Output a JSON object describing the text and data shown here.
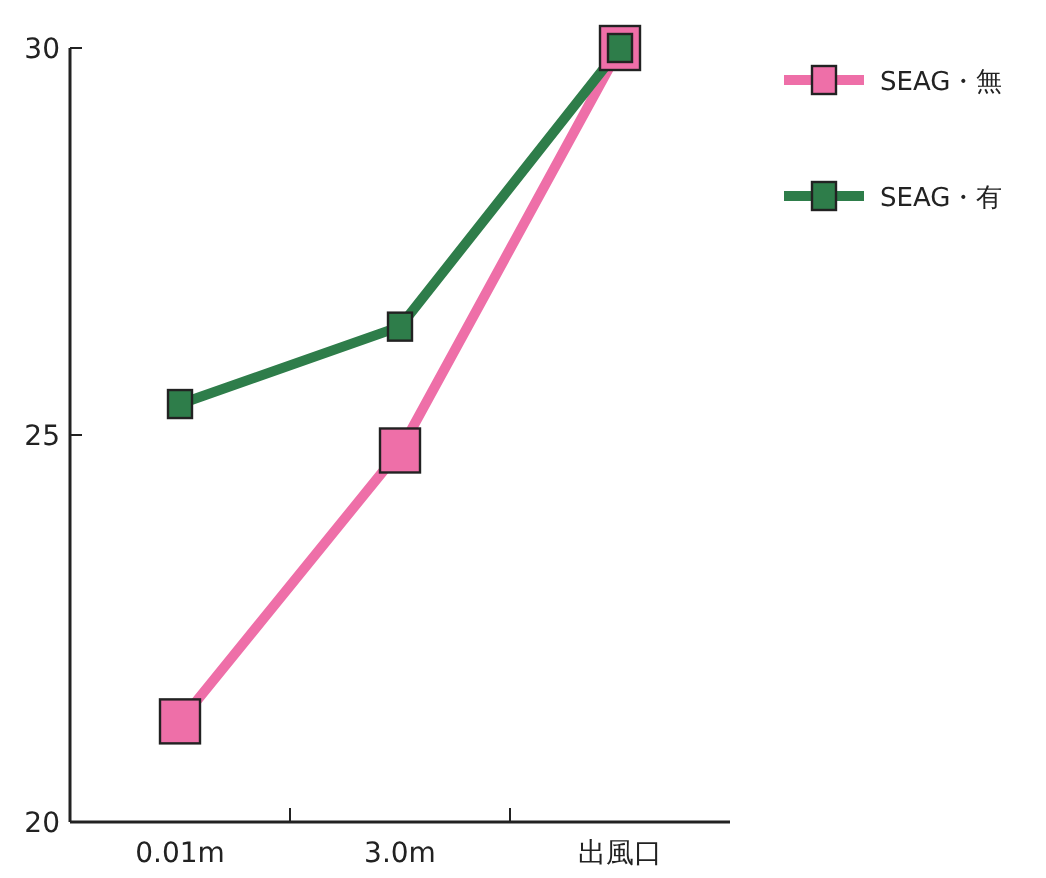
{
  "chart_data": {
    "type": "line",
    "categories": [
      "0.01m",
      "3.0m",
      "出風口"
    ],
    "series": [
      {
        "name": "SEAG・無",
        "color": "#ee6fa8",
        "values": [
          21.3,
          24.8,
          30.0
        ]
      },
      {
        "name": "SEAG・有",
        "color": "#2e7d4a",
        "values": [
          25.4,
          26.4,
          30.0
        ]
      }
    ],
    "ylim": [
      20,
      30
    ],
    "yticks": [
      20,
      25,
      30
    ],
    "marker": "square",
    "line_style": "solid",
    "legend": "top right",
    "grid": false
  }
}
